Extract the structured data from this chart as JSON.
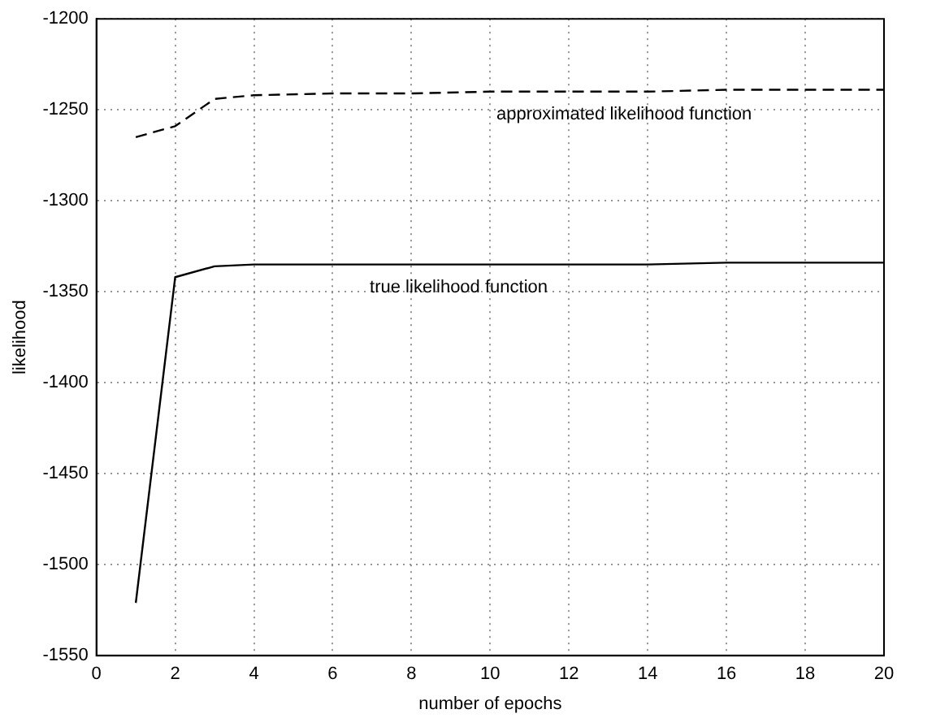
{
  "chart_data": {
    "type": "line",
    "xlabel": "number of epochs",
    "ylabel": "likelihood",
    "xlim": [
      0,
      20
    ],
    "xticks": [
      0,
      2,
      4,
      6,
      8,
      10,
      12,
      14,
      16,
      18,
      20
    ],
    "ylim": [
      -1550,
      -1200
    ],
    "yticks": [
      -1550,
      -1500,
      -1450,
      -1400,
      -1350,
      -1300,
      -1250,
      -1200
    ],
    "grid": true,
    "legend": false,
    "marker": "none",
    "series": [
      {
        "name": "approximated likelihood function",
        "color": "#000000",
        "line_style": "dashed",
        "x": [
          1,
          2,
          3,
          4,
          6,
          8,
          10,
          12,
          14,
          16,
          18,
          20
        ],
        "values": [
          -1265,
          -1259,
          -1244,
          -1242,
          -1241,
          -1241,
          -1240,
          -1240,
          -1240,
          -1239,
          -1239,
          -1239
        ]
      },
      {
        "name": "true likelihood function",
        "color": "#000000",
        "line_style": "solid",
        "x": [
          1,
          2,
          3,
          4,
          6,
          8,
          10,
          12,
          14,
          16,
          18,
          20
        ],
        "values": [
          -1521,
          -1342,
          -1336,
          -1335,
          -1335,
          -1335,
          -1335,
          -1335,
          -1335,
          -1334,
          -1334,
          -1334
        ]
      }
    ]
  }
}
